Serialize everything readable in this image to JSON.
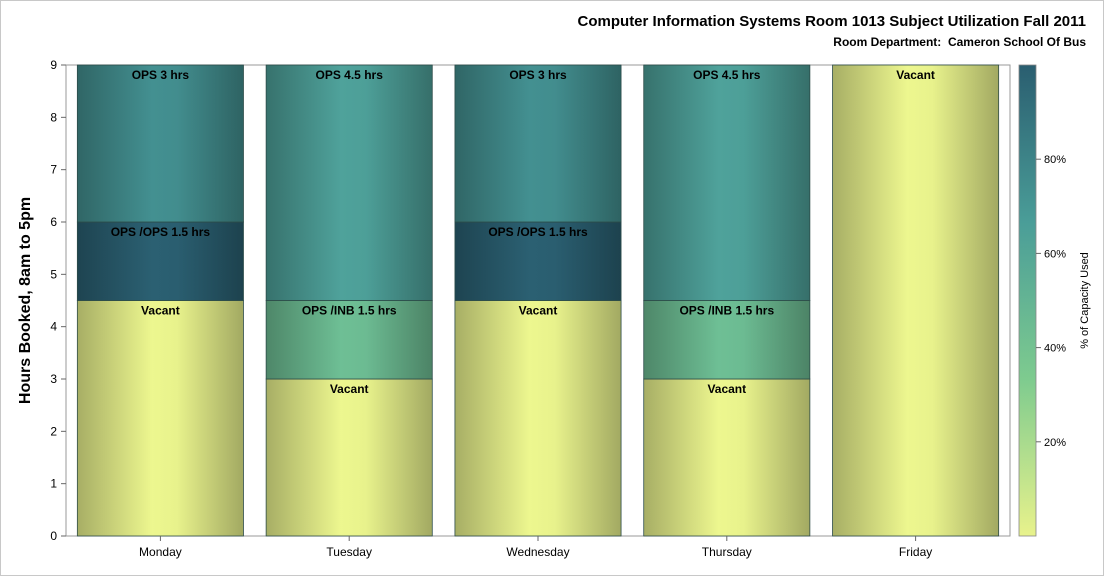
{
  "title": "Computer Information Systems Room 1013 Subject Utilization Fall 2011",
  "subtitle": "Room Department:  Cameron School Of Bus",
  "chart_data": {
    "type": "bar",
    "stacked": true,
    "ylabel": "Hours Booked, 8am to 5pm",
    "ylim": [
      0,
      9
    ],
    "yticks": [
      "0",
      "1",
      "2",
      "3",
      "4",
      "5",
      "6",
      "7",
      "8",
      "9"
    ],
    "categories": [
      "Monday",
      "Tuesday",
      "Wednesday",
      "Thursday",
      "Friday"
    ],
    "bars": [
      {
        "day": "Monday",
        "segments": [
          {
            "label": "Vacant",
            "hours": 4.5,
            "pct_capacity": 0
          },
          {
            "label": "OPS /OPS 1.5 hrs",
            "hours": 1.5,
            "pct_capacity": 100
          },
          {
            "label": "OPS 3 hrs",
            "hours": 3,
            "pct_capacity": 75
          }
        ]
      },
      {
        "day": "Tuesday",
        "segments": [
          {
            "label": "Vacant",
            "hours": 3,
            "pct_capacity": 0
          },
          {
            "label": "OPS /INB 1.5 hrs",
            "hours": 1.5,
            "pct_capacity": 45
          },
          {
            "label": "OPS 4.5 hrs",
            "hours": 4.5,
            "pct_capacity": 65
          }
        ]
      },
      {
        "day": "Wednesday",
        "segments": [
          {
            "label": "Vacant",
            "hours": 4.5,
            "pct_capacity": 0
          },
          {
            "label": "OPS /OPS 1.5 hrs",
            "hours": 1.5,
            "pct_capacity": 100
          },
          {
            "label": "OPS 3 hrs",
            "hours": 3,
            "pct_capacity": 75
          }
        ]
      },
      {
        "day": "Thursday",
        "segments": [
          {
            "label": "Vacant",
            "hours": 3,
            "pct_capacity": 0
          },
          {
            "label": "OPS /INB 1.5 hrs",
            "hours": 1.5,
            "pct_capacity": 45
          },
          {
            "label": "OPS 4.5 hrs",
            "hours": 4.5,
            "pct_capacity": 65
          }
        ]
      },
      {
        "day": "Friday",
        "segments": [
          {
            "label": "Vacant",
            "hours": 9,
            "pct_capacity": 0
          }
        ]
      }
    ],
    "colorbar": {
      "label": "% of Capacity Used",
      "ticks": [
        20,
        40,
        60,
        80
      ],
      "tick_labels": [
        "20%",
        "40%",
        "60%",
        "80%"
      ],
      "range": [
        0,
        100
      ],
      "colors": [
        "#e8f28c",
        "#7ecb8f",
        "#4a9d98",
        "#2a5e70"
      ]
    }
  }
}
